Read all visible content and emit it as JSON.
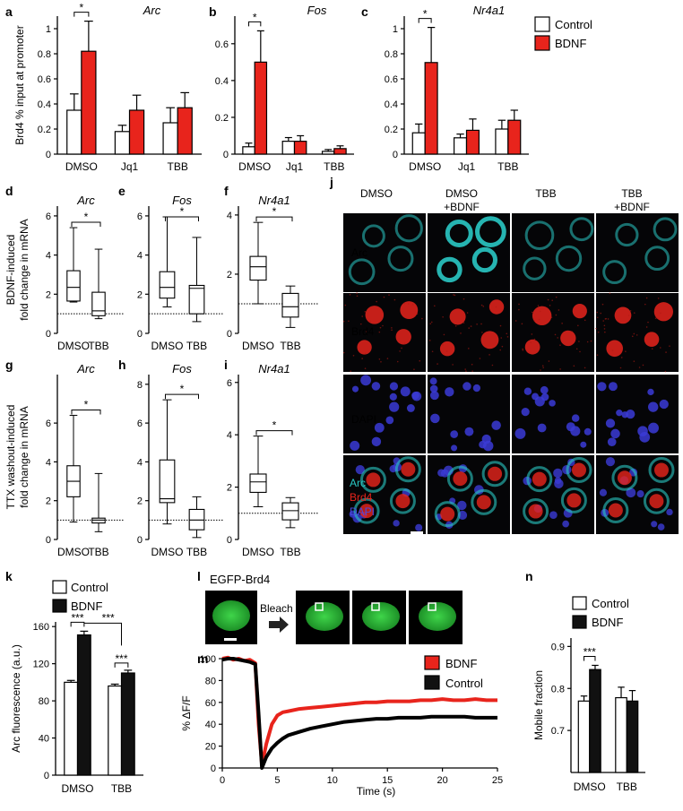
{
  "colors": {
    "control": "#ffffff",
    "bdnf": "#e8241c",
    "bdnf_k": "#111111",
    "arc": "#2ac8c4",
    "brd4": "#e8241c",
    "dapi": "#3b3bd6"
  },
  "legend_top": {
    "control": "Control",
    "bdnf": "BDNF"
  },
  "chart_data": [
    {
      "panel": "a",
      "type": "bar",
      "gene": "Arc",
      "categories": [
        "DMSO",
        "Jq1",
        "TBB"
      ],
      "ylabel": "Brd4 % input at promoter",
      "ylim": [
        0,
        1.1
      ],
      "yticks": [
        0,
        0.2,
        0.4,
        0.6,
        0.8,
        1
      ],
      "series": [
        {
          "name": "Control",
          "values": [
            0.35,
            0.18,
            0.25
          ],
          "err": [
            0.13,
            0.05,
            0.12
          ]
        },
        {
          "name": "BDNF",
          "values": [
            0.82,
            0.35,
            0.37
          ],
          "err": [
            0.24,
            0.12,
            0.12
          ]
        }
      ],
      "sig": "*"
    },
    {
      "panel": "b",
      "type": "bar",
      "gene": "Fos",
      "categories": [
        "DMSO",
        "Jq1",
        "TBB"
      ],
      "ylim": [
        0,
        0.75
      ],
      "yticks": [
        0,
        0.2,
        0.4,
        0.6
      ],
      "series": [
        {
          "name": "Control",
          "values": [
            0.04,
            0.07,
            0.015
          ],
          "err": [
            0.02,
            0.02,
            0.01
          ]
        },
        {
          "name": "BDNF",
          "values": [
            0.5,
            0.07,
            0.03
          ],
          "err": [
            0.17,
            0.03,
            0.015
          ]
        }
      ],
      "sig": "*"
    },
    {
      "panel": "c",
      "type": "bar",
      "gene": "Nr4a1",
      "categories": [
        "DMSO",
        "Jq1",
        "TBB"
      ],
      "ylim": [
        0,
        1.1
      ],
      "yticks": [
        0,
        0.2,
        0.4,
        0.6,
        0.8,
        1
      ],
      "series": [
        {
          "name": "Control",
          "values": [
            0.17,
            0.13,
            0.2
          ],
          "err": [
            0.07,
            0.03,
            0.07
          ]
        },
        {
          "name": "BDNF",
          "values": [
            0.73,
            0.19,
            0.27
          ],
          "err": [
            0.28,
            0.09,
            0.08
          ]
        }
      ],
      "sig": "*"
    },
    {
      "panel": "d",
      "type": "box",
      "gene": "Arc",
      "categories": [
        "DMSO",
        "TBB"
      ],
      "ylabel": "BDNF-induced fold change in mRNA",
      "ylim": [
        0,
        6.5
      ],
      "yticks": [
        0,
        2,
        4,
        6
      ],
      "baseline": 1,
      "boxes": [
        {
          "min": 1.6,
          "q1": 1.65,
          "med": 2.35,
          "q3": 3.2,
          "max": 5.4
        },
        {
          "min": 0.75,
          "q1": 0.9,
          "med": 1.15,
          "q3": 2.1,
          "max": 4.3
        }
      ],
      "sig": "*"
    },
    {
      "panel": "e",
      "type": "box",
      "gene": "Fos",
      "categories": [
        "DMSO",
        "TBB"
      ],
      "ylim": [
        0,
        6.5
      ],
      "yticks": [
        0,
        2,
        4,
        6
      ],
      "baseline": 1,
      "boxes": [
        {
          "min": 1.35,
          "q1": 1.8,
          "med": 2.35,
          "q3": 3.15,
          "max": 5.95
        },
        {
          "min": 0.6,
          "q1": 1.0,
          "med": 2.3,
          "q3": 2.45,
          "max": 4.9
        }
      ],
      "sig": "*"
    },
    {
      "panel": "f",
      "type": "box",
      "gene": "Nr4a1",
      "categories": [
        "DMSO",
        "TBB"
      ],
      "ylim": [
        0,
        4.3
      ],
      "yticks": [
        0,
        2,
        4
      ],
      "baseline": 1,
      "boxes": [
        {
          "min": 1.0,
          "q1": 1.8,
          "med": 2.25,
          "q3": 2.6,
          "max": 3.75
        },
        {
          "min": 0.2,
          "q1": 0.55,
          "med": 0.9,
          "q3": 1.35,
          "max": 1.6
        }
      ],
      "sig": "*"
    },
    {
      "panel": "g",
      "type": "box",
      "gene": "Arc",
      "categories": [
        "DMSO",
        "TBB"
      ],
      "ylabel": "TTX washout-induced fold change in mRNA",
      "ylim": [
        0,
        8.5
      ],
      "yticks": [
        0,
        2,
        4,
        6
      ],
      "baseline": 1,
      "boxes": [
        {
          "min": 0.9,
          "q1": 2.2,
          "med": 3.0,
          "q3": 3.8,
          "max": 6.4
        },
        {
          "min": 0.4,
          "q1": 0.85,
          "med": 1.0,
          "q3": 1.1,
          "max": 3.4
        }
      ],
      "sig": "*"
    },
    {
      "panel": "h",
      "type": "box",
      "gene": "Fos",
      "categories": [
        "DMSO",
        "TBB"
      ],
      "ylim": [
        0,
        8.5
      ],
      "yticks": [
        0,
        2,
        4,
        6,
        8
      ],
      "baseline": 1,
      "boxes": [
        {
          "min": 0.8,
          "q1": 1.9,
          "med": 2.1,
          "q3": 4.1,
          "max": 7.2
        },
        {
          "min": 0.1,
          "q1": 0.5,
          "med": 1.0,
          "q3": 1.55,
          "max": 2.2
        }
      ],
      "sig": "*"
    },
    {
      "panel": "i",
      "type": "box",
      "gene": "Nr4a1",
      "categories": [
        "DMSO",
        "TBB"
      ],
      "ylim": [
        0,
        6.3
      ],
      "yticks": [
        0,
        2,
        4,
        6
      ],
      "baseline": 1,
      "boxes": [
        {
          "min": 1.25,
          "q1": 1.8,
          "med": 2.2,
          "q3": 2.5,
          "max": 3.95
        },
        {
          "min": 0.45,
          "q1": 0.75,
          "med": 1.1,
          "q3": 1.4,
          "max": 1.6
        }
      ],
      "sig": "*"
    },
    {
      "panel": "k",
      "type": "bar",
      "categories": [
        "DMSO",
        "TBB"
      ],
      "ylabel": "Arc fluorescence (a.u.)",
      "ylim": [
        0,
        165
      ],
      "yticks": [
        0,
        40,
        80,
        120,
        160
      ],
      "series": [
        {
          "name": "Control",
          "values": [
            100,
            96
          ],
          "err": [
            2,
            2
          ]
        },
        {
          "name": "BDNF",
          "values": [
            151,
            110
          ],
          "err": [
            4,
            3
          ]
        }
      ],
      "sig": [
        "***",
        "***",
        "***"
      ]
    },
    {
      "panel": "m",
      "type": "line",
      "xlabel": "Time (s)",
      "ylabel": "% ΔF/F",
      "xlim": [
        0,
        25
      ],
      "ylim": [
        0,
        100
      ],
      "xticks": [
        0,
        5,
        10,
        15,
        20,
        25
      ],
      "yticks": [
        0,
        20,
        40,
        60,
        80,
        100
      ],
      "series": [
        {
          "name": "BDNF",
          "x": [
            0,
            0.5,
            1,
            1.5,
            2,
            2.5,
            3,
            3.3,
            3.6,
            4,
            4.5,
            5,
            5.5,
            6,
            7,
            8,
            9,
            10,
            11,
            12,
            13,
            14,
            15,
            16,
            17,
            18,
            19,
            20,
            21,
            22,
            23,
            24,
            25
          ],
          "y": [
            100,
            101,
            99,
            100,
            98,
            99,
            96,
            40,
            3,
            22,
            40,
            48,
            51,
            52,
            54,
            55,
            56,
            57,
            58,
            59,
            60,
            60,
            61,
            61,
            61,
            62,
            62,
            63,
            62,
            62,
            63,
            62,
            62
          ]
        },
        {
          "name": "Control",
          "x": [
            0,
            0.5,
            1,
            1.5,
            2,
            2.5,
            3,
            3.3,
            3.6,
            4,
            4.5,
            5,
            5.5,
            6,
            7,
            8,
            9,
            10,
            11,
            12,
            13,
            14,
            15,
            16,
            17,
            18,
            19,
            20,
            21,
            22,
            23,
            24,
            25
          ],
          "y": [
            99,
            100,
            100,
            99,
            98,
            97,
            95,
            50,
            0,
            10,
            18,
            23,
            27,
            30,
            33,
            36,
            38,
            40,
            42,
            43,
            44,
            45,
            45,
            46,
            46,
            46,
            47,
            47,
            47,
            47,
            46,
            46,
            46
          ]
        }
      ]
    },
    {
      "panel": "n",
      "type": "bar",
      "categories": [
        "DMSO",
        "TBB"
      ],
      "ylabel": "Mobile fraction",
      "ylim": [
        0.6,
        0.92
      ],
      "yticks": [
        0.7,
        0.8,
        0.9
      ],
      "series": [
        {
          "name": "Control",
          "values": [
            0.77,
            0.778
          ],
          "err": [
            0.012,
            0.025
          ]
        },
        {
          "name": "BDNF",
          "values": [
            0.845,
            0.77
          ],
          "err": [
            0.01,
            0.025
          ]
        }
      ],
      "sig": "***"
    }
  ],
  "panel_j": {
    "columns": [
      "DMSO",
      "DMSO\n+BDNF",
      "TBB",
      "TBB\n+BDNF"
    ],
    "rows": [
      "Arc",
      "Brd4",
      "DAPI"
    ],
    "merge_labels": [
      "Arc",
      "Brd4",
      "DAPI"
    ]
  },
  "panel_l": {
    "title": "EGFP-Brd4",
    "arrow_label": "Bleach"
  },
  "legend_k": {
    "control": "Control",
    "bdnf": "BDNF"
  },
  "legend_m": {
    "bdnf": "BDNF",
    "control": "Control"
  },
  "legend_n": {
    "control": "Control",
    "bdnf": "BDNF"
  }
}
